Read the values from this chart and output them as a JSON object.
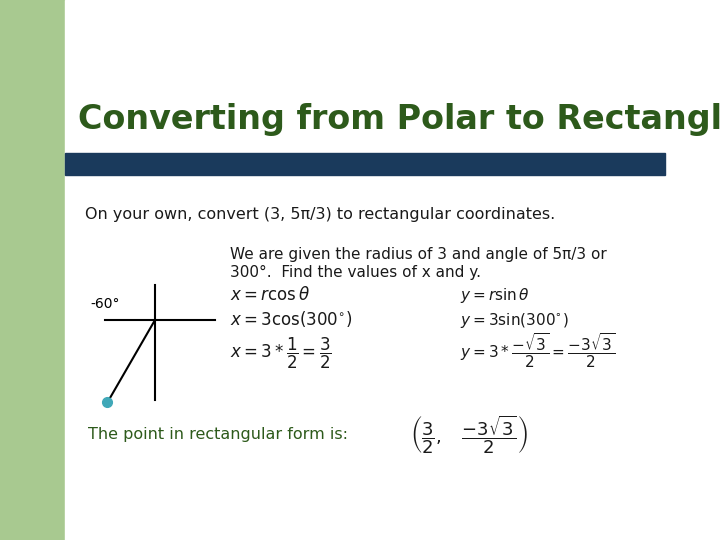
{
  "title": "Converting from Polar to Rectanglar",
  "title_color": "#2d5a1b",
  "title_fontsize": 24,
  "bg_left_color": "#a8c990",
  "bg_main_color": "#ffffff",
  "header_bar_color": "#1a3a5c",
  "subtitle": "On your own, convert (3, 5π/3) to rectangular coordinates.",
  "subtitle_color": "#1a1a1a",
  "subtitle_fontsize": 11.5,
  "desc_line1": "We are given the radius of 3 and angle of 5π/3 or",
  "desc_line2": "300°.  Find the values of x and y.",
  "desc_color": "#1a1a1a",
  "desc_fontsize": 11,
  "eq_color": "#1a1a1a",
  "angle_label": "-60°",
  "dot_color": "#40a8b8",
  "conclusion_text": "The point in rectangular form is:",
  "conclusion_color": "#2d5a1b",
  "conclusion_fontsize": 11.5
}
